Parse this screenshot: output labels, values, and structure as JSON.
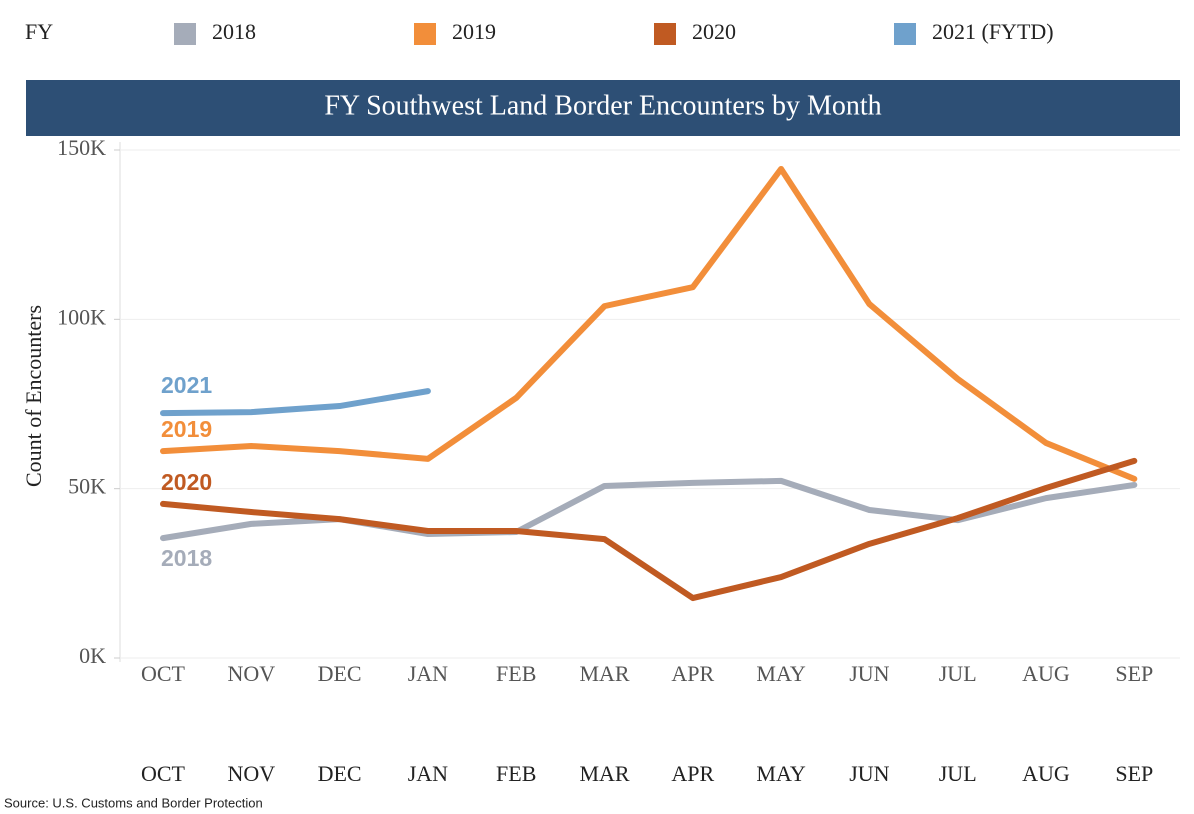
{
  "chart_data": {
    "type": "line",
    "legend_title": "FY",
    "title": "FY Southwest Land Border Encounters by Month",
    "y_label": "Count of Encounters",
    "source": "Source: U.S. Customs and Border Protection",
    "categories": [
      "OCT",
      "NOV",
      "DEC",
      "JAN",
      "FEB",
      "MAR",
      "APR",
      "MAY",
      "JUN",
      "JUL",
      "AUG",
      "SEP"
    ],
    "ylim": [
      0,
      150000
    ],
    "yticks": [
      {
        "value": 0,
        "label": "0K"
      },
      {
        "value": 50000,
        "label": "50K"
      },
      {
        "value": 100000,
        "label": "100K"
      },
      {
        "value": 150000,
        "label": "150K"
      }
    ],
    "grid": true,
    "series": [
      {
        "name": "2018",
        "label": "2018",
        "color": "#a5acb9",
        "values": [
          35400,
          39600,
          41000,
          36600,
          37200,
          50800,
          51700,
          52300,
          43700,
          40700,
          47200,
          51100
        ]
      },
      {
        "name": "2019",
        "label": "2019",
        "color": "#f28e3a",
        "values": [
          61100,
          62600,
          61100,
          58800,
          76800,
          103900,
          109500,
          144400,
          104500,
          82400,
          63500,
          52900
        ]
      },
      {
        "name": "2020",
        "label": "2020",
        "color": "#c05a22",
        "values": [
          45500,
          43100,
          41000,
          37500,
          37500,
          35100,
          17700,
          23900,
          33700,
          41300,
          50200,
          58200
        ]
      },
      {
        "name": "2021 (FYTD)",
        "label": "2021",
        "color": "#6fa1cc",
        "values": [
          72300,
          72600,
          74400,
          78800,
          null,
          null,
          null,
          null,
          null,
          null,
          null,
          null
        ]
      }
    ]
  }
}
